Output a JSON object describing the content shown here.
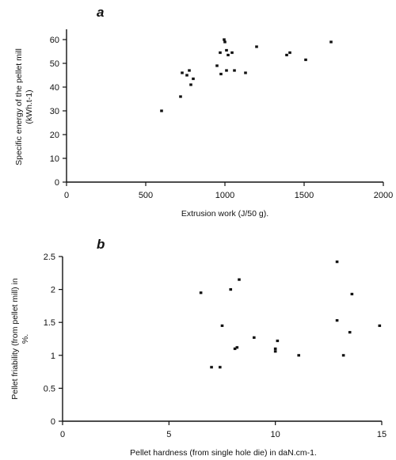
{
  "chart_data": [
    {
      "type": "scatter",
      "panel": "a",
      "title": "",
      "xlabel": "Extrusion work (J/50 g).",
      "ylabel_lines": [
        "Specific energy of the pellet mill",
        "(kWh.t-1)"
      ],
      "xlim": [
        0,
        2000
      ],
      "ylim": [
        0,
        60
      ],
      "xticks": [
        0,
        500,
        1000,
        1500,
        2000
      ],
      "yticks": [
        0,
        10,
        20,
        30,
        40,
        50,
        60
      ],
      "xtick_labels": [
        "0",
        "500",
        "1000",
        "1500",
        "2000"
      ],
      "ytick_labels": [
        "0",
        "10",
        "20",
        "30",
        "40",
        "50",
        "60"
      ],
      "grid": false,
      "points": [
        {
          "x": 600,
          "y": 30
        },
        {
          "x": 720,
          "y": 36
        },
        {
          "x": 730,
          "y": 46
        },
        {
          "x": 760,
          "y": 45
        },
        {
          "x": 775,
          "y": 47
        },
        {
          "x": 785,
          "y": 41
        },
        {
          "x": 800,
          "y": 43.5
        },
        {
          "x": 950,
          "y": 49
        },
        {
          "x": 970,
          "y": 54.5
        },
        {
          "x": 975,
          "y": 45.5
        },
        {
          "x": 995,
          "y": 60
        },
        {
          "x": 1000,
          "y": 59
        },
        {
          "x": 1010,
          "y": 55.5
        },
        {
          "x": 1010,
          "y": 47
        },
        {
          "x": 1020,
          "y": 53.5
        },
        {
          "x": 1045,
          "y": 54.5
        },
        {
          "x": 1060,
          "y": 47
        },
        {
          "x": 1130,
          "y": 46
        },
        {
          "x": 1200,
          "y": 57
        },
        {
          "x": 1390,
          "y": 53.5
        },
        {
          "x": 1410,
          "y": 54.5
        },
        {
          "x": 1510,
          "y": 51.5
        },
        {
          "x": 1670,
          "y": 59
        }
      ]
    },
    {
      "type": "scatter",
      "panel": "b",
      "title": "",
      "xlabel": "Pellet hardness (from single hole die) in daN.cm-1.",
      "ylabel_lines": [
        "Pellet friability (from pellet mill) in",
        "%."
      ],
      "xlim": [
        0,
        15
      ],
      "ylim": [
        0,
        2.5
      ],
      "xticks": [
        0,
        5,
        10,
        15
      ],
      "yticks": [
        0,
        0.5,
        1,
        1.5,
        2,
        2.5
      ],
      "xtick_labels": [
        "0",
        "5",
        "10",
        "15"
      ],
      "ytick_labels": [
        "0",
        "0.5",
        "1",
        "1.5",
        "2",
        "2.5"
      ],
      "grid": false,
      "points": [
        {
          "x": 6.5,
          "y": 1.95
        },
        {
          "x": 7.0,
          "y": 0.82
        },
        {
          "x": 7.4,
          "y": 0.82
        },
        {
          "x": 7.5,
          "y": 1.45
        },
        {
          "x": 7.9,
          "y": 2.0
        },
        {
          "x": 8.1,
          "y": 1.1
        },
        {
          "x": 8.2,
          "y": 1.12
        },
        {
          "x": 8.3,
          "y": 2.15
        },
        {
          "x": 9.0,
          "y": 1.27
        },
        {
          "x": 10.0,
          "y": 1.1
        },
        {
          "x": 10.0,
          "y": 1.06
        },
        {
          "x": 10.1,
          "y": 1.22
        },
        {
          "x": 11.1,
          "y": 1.0
        },
        {
          "x": 12.9,
          "y": 2.42
        },
        {
          "x": 12.9,
          "y": 1.53
        },
        {
          "x": 13.2,
          "y": 1.0
        },
        {
          "x": 13.5,
          "y": 1.35
        },
        {
          "x": 13.6,
          "y": 1.93
        },
        {
          "x": 14.9,
          "y": 1.45
        }
      ]
    }
  ]
}
